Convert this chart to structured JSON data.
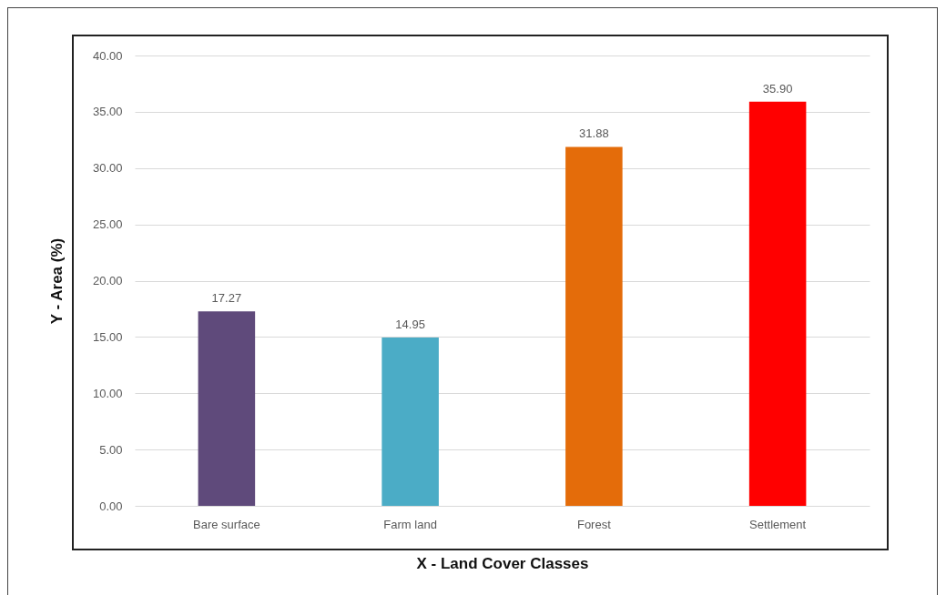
{
  "chart_data": {
    "type": "bar",
    "xlabel": "X - Land Cover Classes",
    "ylabel": "Y - Area (%)",
    "categories": [
      "Bare surface",
      "Farm land",
      "Forest",
      "Settlement"
    ],
    "values": [
      17.27,
      14.95,
      31.88,
      35.9
    ],
    "value_labels": [
      "17.27",
      "14.95",
      "31.88",
      "35.90"
    ],
    "colors": [
      "#5f4a7b",
      "#4bacc6",
      "#e46c0a",
      "#ff0000"
    ],
    "ylim": [
      0,
      40
    ],
    "yticks": [
      {
        "value": 0,
        "label": "0.00"
      },
      {
        "value": 5,
        "label": "5.00"
      },
      {
        "value": 10,
        "label": "10.00"
      },
      {
        "value": 15,
        "label": "15.00"
      },
      {
        "value": 20,
        "label": "20.00"
      },
      {
        "value": 25,
        "label": "25.00"
      },
      {
        "value": 30,
        "label": "30.00"
      },
      {
        "value": 35,
        "label": "35.00"
      },
      {
        "value": 40,
        "label": "40.00"
      }
    ],
    "grid": "y"
  }
}
